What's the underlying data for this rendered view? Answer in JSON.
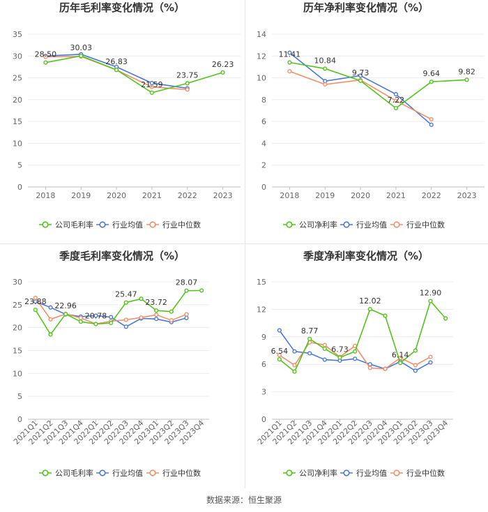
{
  "source": "数据来源：恒生聚源",
  "colors": {
    "company": "#52c41a",
    "industry_avg": "#4a78d8",
    "industry_median": "#f0906a"
  },
  "chart_data": [
    {
      "type": "line",
      "title": "历年毛利率变化情况（%）",
      "categories": [
        "2018",
        "2019",
        "2020",
        "2021",
        "2022",
        "2023"
      ],
      "ylim": [
        0,
        35
      ],
      "yticks": [
        0,
        5,
        10,
        15,
        20,
        25,
        30,
        35
      ],
      "grid": true,
      "legend_position": "bottom",
      "series": [
        {
          "name": "公司毛利率",
          "values": [
            28.5,
            30.03,
            26.83,
            21.59,
            23.75,
            26.23
          ],
          "labels": [
            "28.50",
            "30.03",
            "26.83",
            "21.59",
            "23.75",
            "26.23"
          ]
        },
        {
          "name": "行业均值",
          "values": [
            30.0,
            30.4,
            27.5,
            23.8,
            22.6,
            null
          ]
        },
        {
          "name": "行业中位数",
          "values": [
            29.8,
            29.9,
            26.8,
            22.9,
            22.3,
            null
          ]
        }
      ]
    },
    {
      "type": "line",
      "title": "历年净利率变化情况（%）",
      "categories": [
        "2018",
        "2019",
        "2020",
        "2021",
        "2022",
        "2023"
      ],
      "ylim": [
        0,
        14
      ],
      "yticks": [
        0,
        2,
        4,
        6,
        8,
        10,
        12,
        14
      ],
      "grid": true,
      "legend_position": "bottom",
      "series": [
        {
          "name": "公司净利率",
          "values": [
            11.41,
            10.84,
            9.73,
            7.22,
            9.64,
            9.82
          ],
          "labels": [
            "11.41",
            "10.84",
            "9.73",
            "7.22",
            "9.64",
            "9.82"
          ]
        },
        {
          "name": "行业均值",
          "values": [
            12.3,
            9.7,
            10.2,
            8.5,
            5.7,
            null
          ]
        },
        {
          "name": "行业中位数",
          "values": [
            10.6,
            9.4,
            9.8,
            7.9,
            6.2,
            null
          ]
        }
      ]
    },
    {
      "type": "line",
      "title": "季度毛利率变化情况（%）",
      "categories": [
        "2021Q1",
        "2021Q2",
        "2021Q3",
        "2021Q4",
        "2022Q1",
        "2022Q2",
        "2022Q3",
        "2022Q4",
        "2023Q1",
        "2023Q2",
        "2023Q3",
        "2023Q4"
      ],
      "ylim": [
        0,
        30
      ],
      "yticks": [
        0,
        5,
        10,
        15,
        20,
        25,
        30
      ],
      "grid": true,
      "legend_position": "bottom",
      "series": [
        {
          "name": "公司毛利率",
          "values": [
            23.88,
            18.5,
            22.96,
            21.3,
            20.78,
            21.0,
            25.47,
            26.3,
            23.72,
            23.5,
            28.07,
            28.1
          ],
          "labels": [
            "23.88",
            null,
            "22.96",
            null,
            "20.78",
            null,
            "25.47",
            null,
            "23.72",
            null,
            "28.07",
            null
          ]
        },
        {
          "name": "行业均值",
          "values": [
            25.7,
            24.4,
            22.9,
            22.4,
            22.6,
            22.3,
            20.2,
            22.0,
            21.9,
            21.2,
            22.1,
            null
          ]
        },
        {
          "name": "行业中位数",
          "values": [
            26.5,
            21.8,
            23.0,
            22.1,
            20.8,
            21.4,
            21.7,
            22.2,
            22.8,
            21.6,
            22.9,
            null
          ]
        }
      ]
    },
    {
      "type": "line",
      "title": "季度净利率变化情况（%）",
      "categories": [
        "2021Q1",
        "2021Q2",
        "2021Q3",
        "2021Q4",
        "2022Q1",
        "2022Q2",
        "2022Q3",
        "2022Q4",
        "2023Q1",
        "2023Q2",
        "2023Q3",
        "2023Q4"
      ],
      "ylim": [
        0,
        15
      ],
      "yticks": [
        0,
        3,
        6,
        9,
        12,
        15
      ],
      "grid": true,
      "legend_position": "bottom",
      "series": [
        {
          "name": "公司净利率",
          "values": [
            6.54,
            5.2,
            8.77,
            7.7,
            6.73,
            7.4,
            12.02,
            11.3,
            6.14,
            7.5,
            12.9,
            11.0
          ],
          "labels": [
            "6.54",
            null,
            "8.77",
            null,
            "6.73",
            null,
            "12.02",
            null,
            "6.14",
            null,
            "12.90",
            null
          ]
        },
        {
          "name": "行业均值",
          "values": [
            9.7,
            7.4,
            7.2,
            6.5,
            6.4,
            6.6,
            6.0,
            5.5,
            6.3,
            5.3,
            6.2,
            null
          ]
        },
        {
          "name": "行业中位数",
          "values": [
            7.0,
            5.9,
            8.4,
            8.1,
            6.8,
            8.0,
            5.6,
            5.5,
            6.7,
            5.9,
            6.8,
            null
          ]
        }
      ]
    }
  ]
}
